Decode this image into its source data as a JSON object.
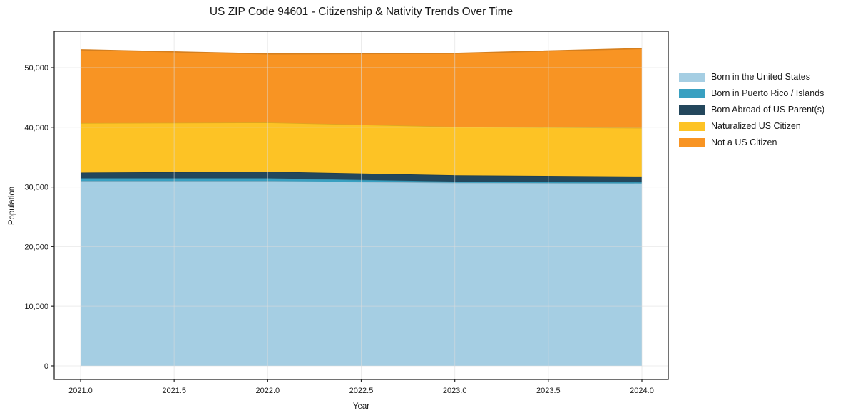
{
  "title": "US ZIP Code 94601 - Citizenship & Nativity Trends Over Time",
  "chart_data": {
    "type": "area",
    "stacked": true,
    "title": "US ZIP Code 94601 - Citizenship & Nativity Trends Over Time",
    "xlabel": "Year",
    "ylabel": "Population",
    "x": [
      2021,
      2022,
      2023,
      2024
    ],
    "series": [
      {
        "name": "Born in the United States",
        "color": "#a5cee3",
        "values": [
          31000,
          31000,
          30700,
          30600
        ]
      },
      {
        "name": "Born in Puerto Rico / Islands",
        "color": "#39a0c1",
        "values": [
          450,
          450,
          200,
          200
        ]
      },
      {
        "name": "Born Abroad of US Parent(s)",
        "color": "#23475c",
        "values": [
          950,
          1100,
          1050,
          950
        ]
      },
      {
        "name": "Naturalized US Citizen",
        "color": "#fdc325",
        "values": [
          8300,
          8250,
          8150,
          8150
        ]
      },
      {
        "name": "Not a US Citizen",
        "color": "#f89423",
        "values": [
          12300,
          11500,
          12300,
          13300
        ]
      }
    ],
    "stacked_totals": [
      53000,
      52300,
      52400,
      53200
    ],
    "xticks": [
      "2021.0",
      "2021.5",
      "2022.0",
      "2022.5",
      "2023.0",
      "2023.5",
      "2024.0"
    ],
    "xtick_values": [
      2021,
      2021.5,
      2022,
      2022.5,
      2023,
      2023.5,
      2024
    ],
    "yticks": [
      "0",
      "10,000",
      "20,000",
      "30,000",
      "40,000",
      "50,000"
    ],
    "ytick_values": [
      0,
      10000,
      20000,
      30000,
      40000,
      50000
    ],
    "xlim": [
      2020.859,
      2024.141
    ],
    "ylim": [
      -2270,
      56085
    ],
    "grid": true,
    "grid_color": "#dcdcdc",
    "spine_color": "#262626",
    "legend_position": "right-outside"
  }
}
